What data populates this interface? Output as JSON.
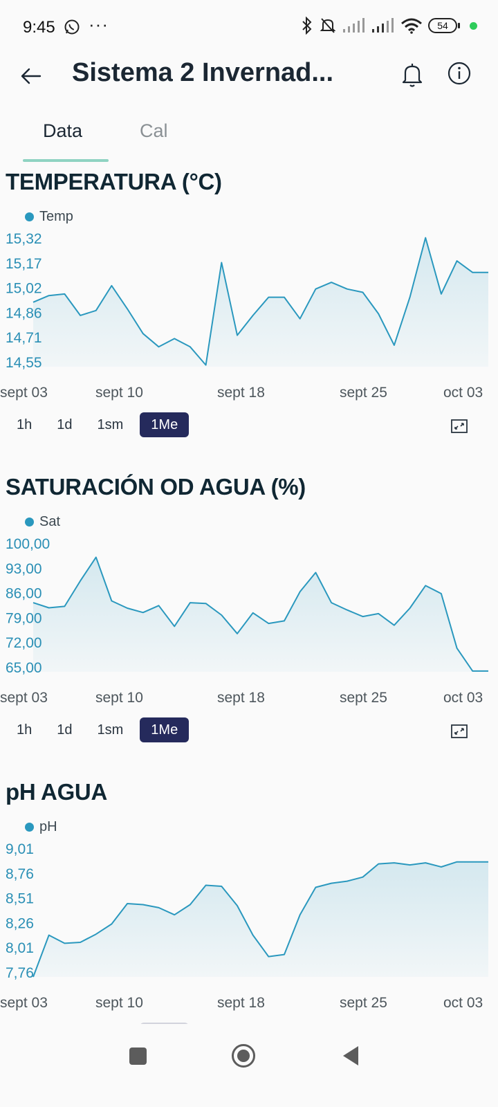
{
  "status_bar": {
    "time": "9:45",
    "more": "···",
    "battery": "54",
    "icons": [
      "whatsapp-icon",
      "bluetooth-icon",
      "bell-off-icon",
      "signal-icon",
      "wifi-icon",
      "battery-icon"
    ]
  },
  "header": {
    "title": "Sistema 2 Invernad...",
    "icons": [
      "arrow-left-icon",
      "bell-icon",
      "info-icon"
    ]
  },
  "tabs": [
    {
      "label": "Data",
      "active": true
    },
    {
      "label": "Cal",
      "active": false
    }
  ],
  "range_buttons": [
    "1h",
    "1d",
    "1sm",
    "1Me"
  ],
  "active_range": "1Me",
  "colors": {
    "line": "#2a98be",
    "active_button": "#252a5c",
    "tab_indicator": "#8fd3c2"
  },
  "charts": [
    {
      "title": "TEMPERATURA (°C)",
      "legend": "Temp",
      "chart_data": {
        "type": "area",
        "series": [
          {
            "name": "Temp",
            "values": [
              14.94,
              14.98,
              14.99,
              14.86,
              14.89,
              15.04,
              14.9,
              14.75,
              14.67,
              14.72,
              14.67,
              14.56,
              15.18,
              14.74,
              14.86,
              14.97,
              14.97,
              14.84,
              15.02,
              15.06,
              15.02,
              15.0,
              14.87,
              14.68,
              14.97,
              15.33,
              14.99,
              15.19,
              15.12,
              15.12
            ]
          }
        ],
        "y_ticks": [
          "15,32",
          "15,17",
          "15,02",
          "14,86",
          "14,71",
          "14,55"
        ],
        "x_ticks": [
          "sept 03",
          "sept 10",
          "sept 18",
          "sept 25",
          "oct 03"
        ],
        "ylim": [
          14.55,
          15.32
        ]
      }
    },
    {
      "title": "SATURACIÓN OD AGUA (%)",
      "legend": "Sat",
      "chart_data": {
        "type": "area",
        "series": [
          {
            "name": "Sat",
            "values": [
              84,
              82.6,
              83,
              90,
              96.5,
              84.5,
              82.5,
              81.3,
              83.2,
              77.5,
              84,
              83.8,
              80.6,
              75.5,
              81.2,
              78.3,
              79,
              87,
              92.3,
              84,
              82,
              80.2,
              81,
              77.8,
              82.5,
              88.7,
              86.5,
              71.5,
              65.2,
              65.2
            ]
          }
        ],
        "y_ticks": [
          "100,00",
          "93,00",
          "86,00",
          "79,00",
          "72,00",
          "65,00"
        ],
        "x_ticks": [
          "sept 03",
          "sept 10",
          "sept 18",
          "sept 25",
          "oct 03"
        ],
        "ylim": [
          65,
          100
        ]
      }
    },
    {
      "title": "pH AGUA",
      "legend": "pH",
      "chart_data": {
        "type": "area",
        "series": [
          {
            "name": "pH",
            "values": [
              7.76,
              8.17,
              8.09,
              8.1,
              8.18,
              8.28,
              8.48,
              8.47,
              8.44,
              8.37,
              8.47,
              8.66,
              8.65,
              8.46,
              8.17,
              7.96,
              7.98,
              8.37,
              8.64,
              8.68,
              8.7,
              8.74,
              8.87,
              8.88,
              8.86,
              8.88,
              8.84,
              8.89,
              8.89,
              8.89
            ]
          }
        ],
        "y_ticks": [
          "9,01",
          "8,76",
          "8,51",
          "8,26",
          "8,01",
          "7,76"
        ],
        "x_ticks": [
          "sept 03",
          "sept 10",
          "sept 18",
          "sept 25",
          "oct 03"
        ],
        "ylim": [
          7.76,
          9.01
        ]
      }
    }
  ]
}
